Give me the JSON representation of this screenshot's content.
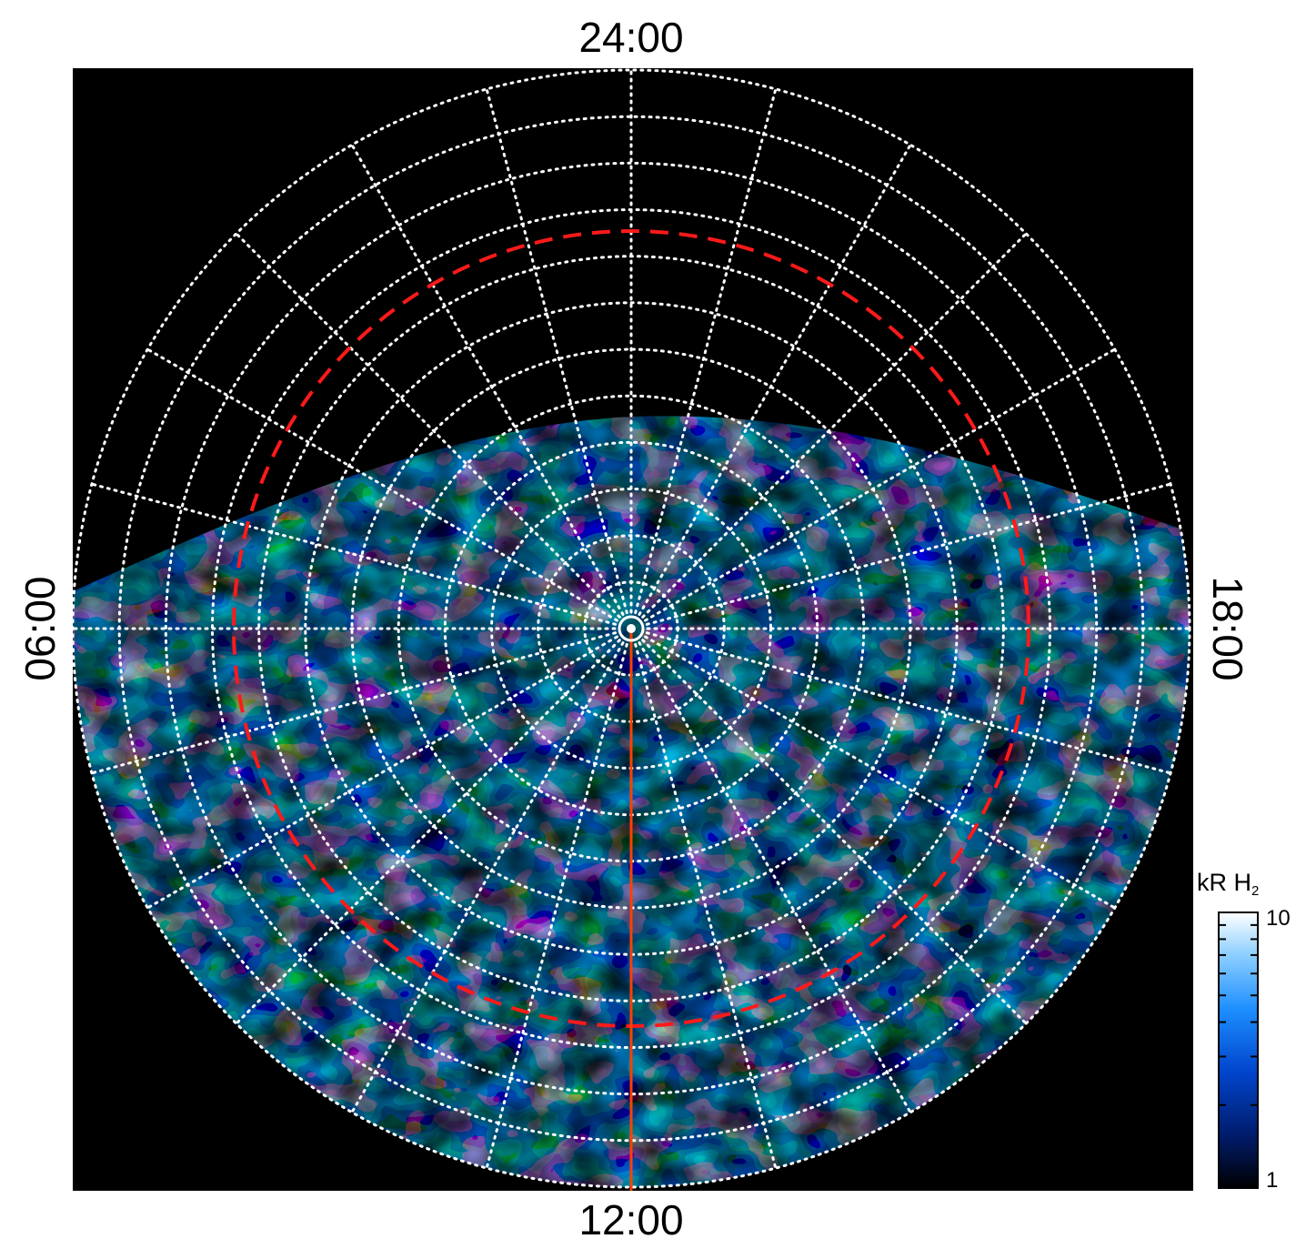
{
  "chart_data": {
    "type": "heatmap",
    "projection": "polar",
    "title": "",
    "local_time_labels": {
      "top": "24:00",
      "bottom": "12:00",
      "left": "06:00",
      "right": "18:00"
    },
    "colorbar": {
      "title": "kR H",
      "title_subscript": "2",
      "min_label": "1",
      "max_label": "10",
      "min": 1,
      "max": 10,
      "scale": "log",
      "colors": [
        "#000000",
        "#001a66",
        "#0044cc",
        "#1e8fff",
        "#8fd0ff",
        "#ffffff"
      ]
    },
    "grid": {
      "style": "dotted",
      "color": "#ffffff",
      "local_time_meridian_step_hours": 1,
      "latitude_circle_count": 12
    },
    "reference_circle": {
      "style": "dashed",
      "color": "#ff0000"
    },
    "noon_meridian_line": {
      "color": "#ff4000",
      "from": "pole",
      "to": "12:00"
    },
    "coverage": "dayside hemisphere plus dawn and dusk flanks; nightside sector with no data",
    "background_color": "#000000"
  }
}
